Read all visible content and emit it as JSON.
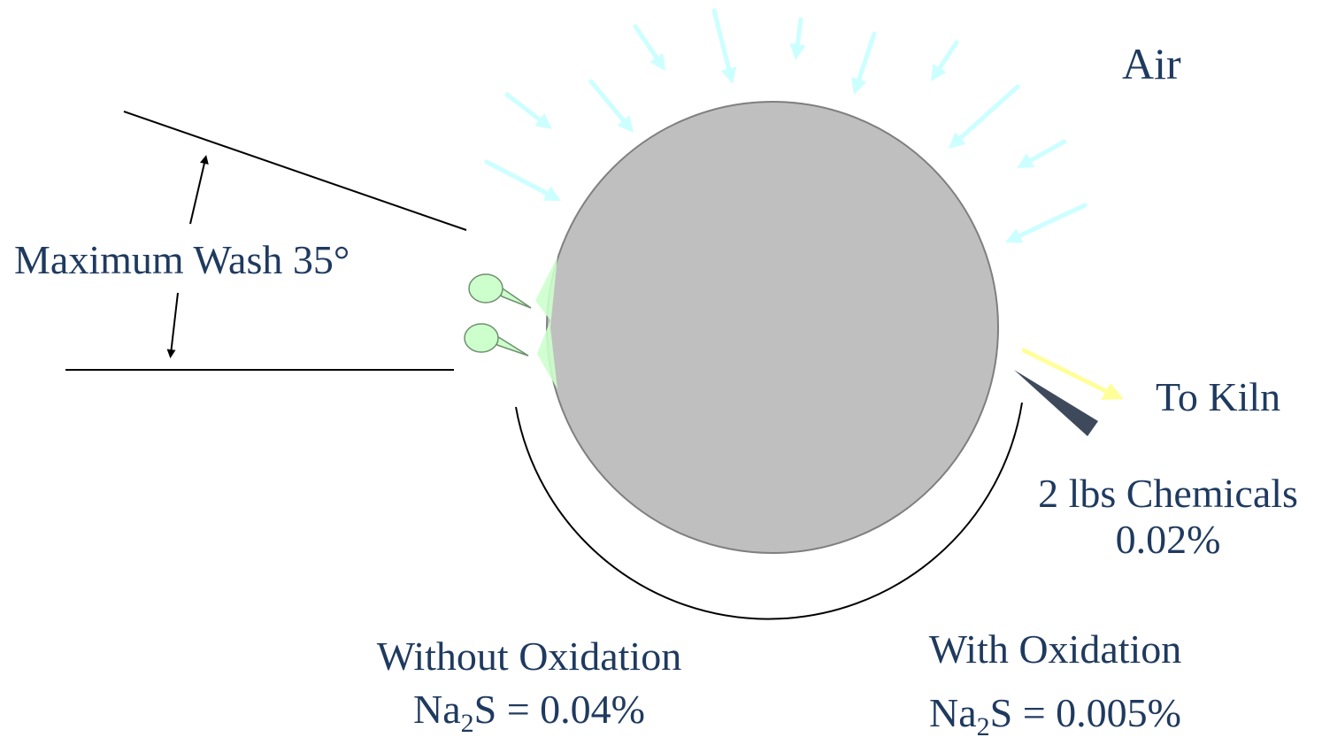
{
  "labels": {
    "air": "Air",
    "max_wash": "Maximum Wash 35°",
    "to_kiln": "To Kiln",
    "chemicals_line1": "2 lbs Chemicals",
    "chemicals_line2": "0.02%",
    "without_oxidation": {
      "title": "Without Oxidation",
      "formula_prefix": "Na",
      "formula_subscript": "2",
      "formula_suffix": "S = 0.04%"
    },
    "with_oxidation": {
      "title": "With Oxidation",
      "formula_prefix": "Na",
      "formula_subscript": "2",
      "formula_suffix": "S = 0.005%"
    }
  },
  "colors": {
    "drum_fill": "#bfbfbf",
    "drum_stroke": "#7f7f7f",
    "air_arrow": "#ccffff",
    "kiln_arrow": "#ffff99",
    "shower_fill": "#ccffcc",
    "shower_stroke": "#6f8f6f",
    "doctor_blade": "#3e4a5c",
    "text": "#1f3a5f",
    "line": "#000000"
  }
}
